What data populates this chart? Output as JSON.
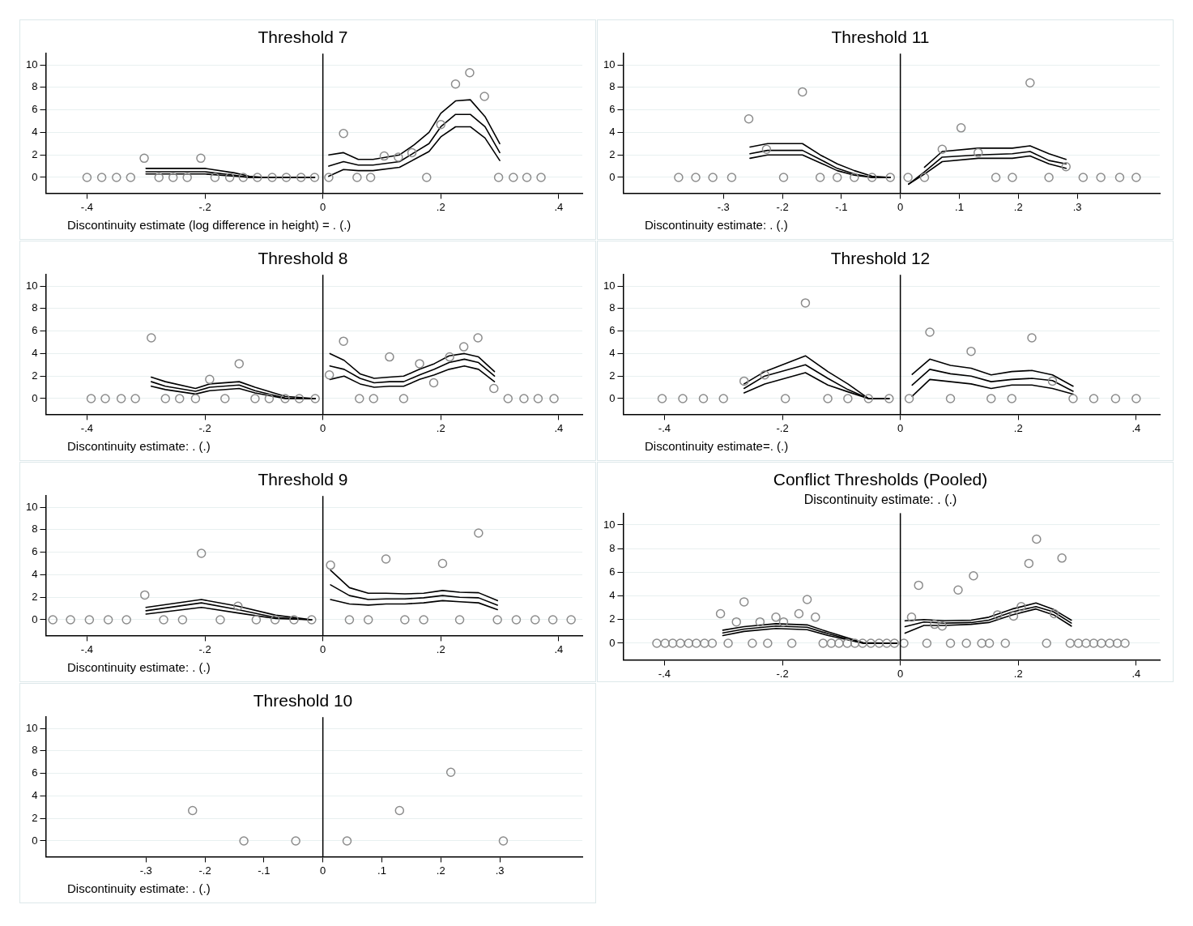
{
  "chart_data": [
    {
      "type": "scatter",
      "title": "Threshold 7",
      "annotations": [
        "Discontinuity estimate (log difference in height) = . (.)"
      ],
      "xlim": [
        -0.47,
        0.44
      ],
      "ylim": [
        -1.4,
        11
      ],
      "xticks": [
        {
          "value": -0.4,
          "label": "-.4"
        },
        {
          "value": -0.2,
          "label": "-.2"
        },
        {
          "value": 0,
          "label": "0"
        },
        {
          "value": 0.2,
          "label": ".2"
        },
        {
          "value": 0.4,
          "label": ".4"
        }
      ],
      "yticks": [
        0,
        2,
        4,
        6,
        8,
        10
      ],
      "grid": "y",
      "marker": "circle",
      "ref_lines": [
        {
          "axis": "x",
          "value": 0,
          "color": "#000000"
        }
      ],
      "series": [
        {
          "color": "#8c8c8c",
          "x": [
            -0.4,
            -0.375,
            -0.35,
            -0.326,
            -0.303,
            -0.278,
            -0.254,
            -0.23,
            -0.207,
            -0.183,
            -0.158,
            -0.135,
            -0.111,
            -0.086,
            -0.062,
            -0.037,
            -0.014,
            0.01,
            0.035,
            0.058,
            0.081,
            0.104,
            0.128,
            0.151,
            0.176,
            0.2,
            0.225,
            0.249,
            0.274,
            0.298,
            0.323,
            0.346,
            0.37
          ],
          "values": [
            0,
            0,
            0,
            0,
            1.7,
            0,
            0,
            0,
            1.7,
            0,
            0,
            0,
            0,
            0,
            0,
            0,
            0,
            0,
            3.9,
            0,
            0,
            1.9,
            1.8,
            2.2,
            0,
            4.7,
            8.3,
            9.3,
            7.2,
            0,
            0,
            0,
            0
          ]
        },
        {
          "type": "line",
          "marker": "none",
          "color": "#000000",
          "x": [
            -0.3,
            -0.25,
            -0.2,
            -0.15,
            -0.125,
            -0.1,
            -0.05,
            -0.014
          ],
          "values": [
            0.5,
            0.5,
            0.5,
            0.2,
            0,
            0,
            0,
            0
          ]
        },
        {
          "type": "line",
          "marker": "none",
          "color": "#000000",
          "x": [
            -0.3,
            -0.25,
            -0.2,
            -0.15,
            -0.125,
            -0.1,
            -0.05,
            -0.014
          ],
          "values": [
            0.3,
            0.3,
            0.3,
            0.1,
            0,
            0,
            0,
            0
          ]
        },
        {
          "type": "line",
          "marker": "none",
          "color": "#000000",
          "x": [
            -0.3,
            -0.25,
            -0.2,
            -0.15,
            -0.125,
            -0.1,
            -0.05,
            -0.014
          ],
          "values": [
            0.8,
            0.8,
            0.8,
            0.4,
            0.1,
            0,
            0,
            0
          ]
        },
        {
          "type": "line",
          "marker": "none",
          "color": "#000000",
          "x": [
            0.01,
            0.035,
            0.06,
            0.085,
            0.13,
            0.155,
            0.18,
            0.2,
            0.225,
            0.25,
            0.275,
            0.3
          ],
          "values": [
            1,
            1.4,
            1.1,
            1.1,
            1.4,
            2.2,
            3,
            4.5,
            5.6,
            5.6,
            4.5,
            2.2
          ]
        },
        {
          "type": "line",
          "marker": "none",
          "color": "#000000",
          "x": [
            0.01,
            0.035,
            0.06,
            0.085,
            0.13,
            0.155,
            0.18,
            0.2,
            0.225,
            0.25,
            0.275,
            0.3
          ],
          "values": [
            0.1,
            0.7,
            0.6,
            0.6,
            0.9,
            1.6,
            2.3,
            3.6,
            4.5,
            4.5,
            3.5,
            1.5
          ]
        },
        {
          "type": "line",
          "marker": "none",
          "color": "#000000",
          "x": [
            0.01,
            0.035,
            0.06,
            0.085,
            0.13,
            0.155,
            0.18,
            0.2,
            0.225,
            0.25,
            0.275,
            0.3
          ],
          "values": [
            2,
            2.2,
            1.6,
            1.6,
            2,
            2.9,
            4,
            5.7,
            6.8,
            6.9,
            5.4,
            3
          ]
        }
      ]
    },
    {
      "type": "scatter",
      "title": "Threshold 11",
      "annotations": [
        "Discontinuity estimate: . (.)"
      ],
      "xlim": [
        -0.47,
        0.44
      ],
      "ylim": [
        -1.4,
        11
      ],
      "xticks": [
        {
          "value": -0.3,
          "label": "-.3"
        },
        {
          "value": -0.2,
          "label": "-.2"
        },
        {
          "value": -0.1,
          "label": "-.1"
        },
        {
          "value": 0,
          "label": "0"
        },
        {
          "value": 0.1,
          "label": ".1"
        },
        {
          "value": 0.2,
          "label": ".2"
        },
        {
          "value": 0.3,
          "label": ".3"
        }
      ],
      "yticks": [
        0,
        2,
        4,
        6,
        8,
        10
      ],
      "grid": "y",
      "marker": "circle",
      "ref_lines": [
        {
          "axis": "x",
          "value": 0,
          "color": "#000000"
        }
      ],
      "series": [
        {
          "color": "#8c8c8c",
          "x": [
            -0.376,
            -0.347,
            -0.318,
            -0.286,
            -0.257,
            -0.227,
            -0.198,
            -0.166,
            -0.136,
            -0.107,
            -0.078,
            -0.048,
            -0.017,
            0.013,
            0.041,
            0.071,
            0.103,
            0.132,
            0.162,
            0.19,
            0.22,
            0.252,
            0.281,
            0.31,
            0.34,
            0.372,
            0.4
          ],
          "values": [
            0,
            0,
            0,
            0,
            5.2,
            2.5,
            0,
            7.6,
            0,
            0,
            0,
            0,
            0,
            0,
            0,
            2.5,
            4.4,
            2.2,
            0,
            0,
            8.4,
            0,
            0.95,
            0,
            0,
            0,
            0
          ]
        },
        {
          "type": "line",
          "marker": "none",
          "color": "#000000",
          "x": [
            -0.255,
            -0.225,
            -0.166,
            -0.136,
            -0.107,
            -0.078,
            -0.048,
            -0.017
          ],
          "values": [
            2.1,
            2.4,
            2.4,
            1.6,
            0.8,
            0.3,
            0,
            0
          ]
        },
        {
          "type": "line",
          "marker": "none",
          "color": "#000000",
          "x": [
            -0.255,
            -0.225,
            -0.166,
            -0.136,
            -0.107,
            -0.078,
            -0.048,
            -0.017
          ],
          "values": [
            1.7,
            2,
            2,
            1.3,
            0.6,
            0.2,
            0,
            0
          ]
        },
        {
          "type": "line",
          "marker": "none",
          "color": "#000000",
          "x": [
            -0.255,
            -0.225,
            -0.166,
            -0.136,
            -0.107,
            -0.078,
            -0.048,
            -0.017
          ],
          "values": [
            2.7,
            3,
            3,
            2,
            1.2,
            0.6,
            0.1,
            0
          ]
        },
        {
          "type": "line",
          "marker": "none",
          "color": "#000000",
          "x": [
            0.014,
            0.041,
            0.071,
            0.132,
            0.19,
            0.22,
            0.252,
            0.281
          ],
          "values": [
            -0.6,
            0.5,
            1.8,
            2,
            2.1,
            2.3,
            1.5,
            1.2
          ]
        },
        {
          "type": "line",
          "marker": "none",
          "color": "#000000",
          "x": [
            0.014,
            0.041,
            0.071,
            0.132,
            0.19,
            0.22,
            0.252,
            0.281
          ],
          "values": [
            -0.6,
            0.3,
            1.4,
            1.7,
            1.7,
            1.9,
            1.2,
            0.8
          ]
        },
        {
          "type": "line",
          "marker": "none",
          "color": "#000000",
          "x": [
            0.041,
            0.071,
            0.132,
            0.19,
            0.22,
            0.252,
            0.281
          ],
          "values": [
            0.9,
            2.3,
            2.6,
            2.6,
            2.8,
            2.1,
            1.6
          ]
        }
      ]
    },
    {
      "type": "scatter",
      "title": "Threshold 8",
      "annotations": [
        "Discontinuity estimate: . (.)"
      ],
      "xlim": [
        -0.47,
        0.44
      ],
      "ylim": [
        -1.4,
        11
      ],
      "xticks": [
        {
          "value": -0.4,
          "label": "-.4"
        },
        {
          "value": -0.2,
          "label": "-.2"
        },
        {
          "value": 0,
          "label": "0"
        },
        {
          "value": 0.2,
          "label": ".2"
        },
        {
          "value": 0.4,
          "label": ".4"
        }
      ],
      "yticks": [
        0,
        2,
        4,
        6,
        8,
        10
      ],
      "grid": "y",
      "marker": "circle",
      "ref_lines": [
        {
          "axis": "x",
          "value": 0,
          "color": "#000000"
        }
      ],
      "series": [
        {
          "color": "#8c8c8c",
          "x": [
            -0.393,
            -0.369,
            -0.342,
            -0.318,
            -0.291,
            -0.267,
            -0.243,
            -0.216,
            -0.192,
            -0.166,
            -0.142,
            -0.115,
            -0.091,
            -0.064,
            -0.04,
            -0.013,
            0.011,
            0.035,
            0.062,
            0.086,
            0.113,
            0.137,
            0.164,
            0.188,
            0.215,
            0.239,
            0.263,
            0.29,
            0.314,
            0.341,
            0.365,
            0.392
          ],
          "values": [
            0,
            0,
            0,
            0,
            5.4,
            0,
            0,
            0,
            1.7,
            0,
            3.1,
            0,
            0,
            0,
            0,
            0,
            2.1,
            5.1,
            0,
            0,
            3.7,
            0,
            3.1,
            1.4,
            3.7,
            4.6,
            5.4,
            0.9,
            0,
            0,
            0,
            0
          ]
        },
        {
          "type": "line",
          "marker": "none",
          "color": "#000000",
          "x": [
            -0.291,
            -0.267,
            -0.216,
            -0.192,
            -0.142,
            -0.115,
            -0.064,
            -0.013
          ],
          "values": [
            1.5,
            1.1,
            0.65,
            1,
            1.2,
            0.7,
            0.05,
            0
          ]
        },
        {
          "type": "line",
          "marker": "none",
          "color": "#000000",
          "x": [
            -0.291,
            -0.267,
            -0.216,
            -0.192,
            -0.142,
            -0.115,
            -0.064,
            -0.013
          ],
          "values": [
            1.1,
            0.8,
            0.4,
            0.7,
            0.9,
            0.5,
            0,
            0
          ]
        },
        {
          "type": "line",
          "marker": "none",
          "color": "#000000",
          "x": [
            -0.291,
            -0.267,
            -0.216,
            -0.192,
            -0.142,
            -0.115,
            -0.064,
            -0.013
          ],
          "values": [
            1.9,
            1.5,
            0.9,
            1.3,
            1.5,
            1,
            0.2,
            0
          ]
        },
        {
          "type": "line",
          "marker": "none",
          "color": "#000000",
          "x": [
            0.012,
            0.036,
            0.063,
            0.087,
            0.113,
            0.137,
            0.164,
            0.189,
            0.214,
            0.24,
            0.264,
            0.291
          ],
          "values": [
            2.9,
            2.6,
            1.8,
            1.4,
            1.5,
            1.5,
            2.1,
            2.6,
            3.2,
            3.5,
            3.2,
            2
          ]
        },
        {
          "type": "line",
          "marker": "none",
          "color": "#000000",
          "x": [
            0.012,
            0.036,
            0.063,
            0.087,
            0.113,
            0.137,
            0.164,
            0.189,
            0.214,
            0.24,
            0.264,
            0.291
          ],
          "values": [
            1.7,
            2,
            1.3,
            1,
            1.1,
            1.1,
            1.7,
            2.1,
            2.6,
            2.9,
            2.6,
            1.5
          ]
        },
        {
          "type": "line",
          "marker": "none",
          "color": "#000000",
          "x": [
            0.012,
            0.036,
            0.063,
            0.087,
            0.113,
            0.137,
            0.164,
            0.189,
            0.214,
            0.24,
            0.264,
            0.291
          ],
          "values": [
            4,
            3.4,
            2.2,
            1.8,
            1.9,
            2,
            2.6,
            3.1,
            3.8,
            4,
            3.7,
            2.4
          ]
        }
      ]
    },
    {
      "type": "scatter",
      "title": "Threshold 12",
      "annotations": [
        "Discontinuity estimate=. (.)"
      ],
      "xlim": [
        -0.47,
        0.44
      ],
      "ylim": [
        -1.4,
        11
      ],
      "xticks": [
        {
          "value": -0.4,
          "label": "-.4"
        },
        {
          "value": -0.2,
          "label": "-.2"
        },
        {
          "value": 0,
          "label": "0"
        },
        {
          "value": 0.2,
          "label": ".2"
        },
        {
          "value": 0.4,
          "label": ".4"
        }
      ],
      "yticks": [
        0,
        2,
        4,
        6,
        8,
        10
      ],
      "grid": "y",
      "marker": "circle",
      "ref_lines": [
        {
          "axis": "x",
          "value": 0,
          "color": "#000000"
        }
      ],
      "series": [
        {
          "color": "#8c8c8c",
          "x": [
            -0.404,
            -0.369,
            -0.334,
            -0.3,
            -0.265,
            -0.23,
            -0.195,
            -0.161,
            -0.123,
            -0.089,
            -0.054,
            -0.019,
            0.015,
            0.05,
            0.085,
            0.12,
            0.154,
            0.189,
            0.223,
            0.258,
            0.293,
            0.328,
            0.365,
            0.4
          ],
          "values": [
            0,
            0,
            0,
            0,
            1.55,
            2.1,
            0,
            8.5,
            0,
            0,
            0,
            0,
            0,
            5.9,
            0,
            4.2,
            0,
            0,
            5.4,
            1.55,
            0,
            0,
            0,
            0
          ]
        },
        {
          "type": "line",
          "marker": "none",
          "color": "#000000",
          "x": [
            -0.265,
            -0.23,
            -0.161,
            -0.123,
            -0.089,
            -0.054,
            -0.019
          ],
          "values": [
            0.9,
            2,
            3,
            1.8,
            0.8,
            0,
            0
          ]
        },
        {
          "type": "line",
          "marker": "none",
          "color": "#000000",
          "x": [
            -0.265,
            -0.23,
            -0.161,
            -0.123,
            -0.089,
            -0.054,
            -0.019
          ],
          "values": [
            0.5,
            1.3,
            2.3,
            1.2,
            0.6,
            0,
            0
          ]
        },
        {
          "type": "line",
          "marker": "none",
          "color": "#000000",
          "x": [
            -0.265,
            -0.23,
            -0.161,
            -0.123,
            -0.089,
            -0.054,
            -0.019
          ],
          "values": [
            1.3,
            2.4,
            3.8,
            2.4,
            1.3,
            0,
            0
          ]
        },
        {
          "type": "line",
          "marker": "none",
          "color": "#000000",
          "x": [
            0.02,
            0.05,
            0.085,
            0.12,
            0.154,
            0.189,
            0.223,
            0.258,
            0.293
          ],
          "values": [
            1.2,
            2.6,
            2.2,
            2,
            1.5,
            1.7,
            1.8,
            1.6,
            0.65
          ]
        },
        {
          "type": "line",
          "marker": "none",
          "color": "#000000",
          "x": [
            0.02,
            0.05,
            0.085,
            0.12,
            0.154,
            0.189,
            0.223,
            0.258,
            0.293
          ],
          "values": [
            0.2,
            1.7,
            1.5,
            1.3,
            0.9,
            1.2,
            1.2,
            0.9,
            0.4
          ]
        },
        {
          "type": "line",
          "marker": "none",
          "color": "#000000",
          "x": [
            0.02,
            0.05,
            0.085,
            0.12,
            0.154,
            0.189,
            0.223,
            0.258,
            0.293
          ],
          "values": [
            2.15,
            3.5,
            2.95,
            2.7,
            2.1,
            2.4,
            2.5,
            2.1,
            1.1
          ]
        }
      ]
    },
    {
      "type": "scatter",
      "title": "Threshold 9",
      "annotations": [
        "Discontinuity estimate: . (.)"
      ],
      "xlim": [
        -0.47,
        0.44
      ],
      "ylim": [
        -1.4,
        11
      ],
      "xticks": [
        {
          "value": -0.4,
          "label": "-.4"
        },
        {
          "value": -0.2,
          "label": "-.2"
        },
        {
          "value": 0,
          "label": "0"
        },
        {
          "value": 0.2,
          "label": ".2"
        },
        {
          "value": 0.4,
          "label": ".4"
        }
      ],
      "yticks": [
        0,
        2,
        4,
        6,
        8,
        10
      ],
      "grid": "y",
      "marker": "circle",
      "ref_lines": [
        {
          "axis": "x",
          "value": 0,
          "color": "#000000"
        }
      ],
      "series": [
        {
          "color": "#8c8c8c",
          "x": [
            -0.458,
            -0.428,
            -0.396,
            -0.364,
            -0.333,
            -0.302,
            -0.27,
            -0.238,
            -0.206,
            -0.174,
            -0.144,
            -0.113,
            -0.081,
            -0.049,
            -0.019,
            0.013,
            0.045,
            0.077,
            0.107,
            0.139,
            0.171,
            0.203,
            0.232,
            0.264,
            0.296,
            0.328,
            0.36,
            0.39,
            0.421
          ],
          "values": [
            0,
            0,
            0,
            0,
            0,
            2.2,
            0,
            0,
            5.9,
            0,
            1.2,
            0,
            0,
            0,
            0,
            4.85,
            0,
            0,
            5.4,
            0,
            0,
            5,
            0,
            7.7,
            0,
            0,
            0,
            0,
            0
          ]
        },
        {
          "type": "line",
          "marker": "none",
          "color": "#000000",
          "x": [
            -0.3,
            -0.206,
            -0.144,
            -0.08,
            -0.019
          ],
          "values": [
            0.8,
            1.5,
            0.9,
            0.2,
            0
          ]
        },
        {
          "type": "line",
          "marker": "none",
          "color": "#000000",
          "x": [
            -0.3,
            -0.206,
            -0.144,
            -0.08,
            -0.019
          ],
          "values": [
            0.5,
            1.1,
            0.6,
            0.1,
            0
          ]
        },
        {
          "type": "line",
          "marker": "none",
          "color": "#000000",
          "x": [
            -0.3,
            -0.206,
            -0.144,
            -0.08,
            -0.019
          ],
          "values": [
            1.1,
            1.8,
            1.2,
            0.4,
            0
          ]
        },
        {
          "type": "line",
          "marker": "none",
          "color": "#000000",
          "x": [
            0.013,
            0.045,
            0.077,
            0.107,
            0.139,
            0.171,
            0.203,
            0.232,
            0.264,
            0.296
          ],
          "values": [
            3.1,
            2.15,
            1.8,
            1.85,
            1.85,
            1.95,
            2.15,
            2,
            1.95,
            1.3
          ]
        },
        {
          "type": "line",
          "marker": "none",
          "color": "#000000",
          "x": [
            0.013,
            0.045,
            0.077,
            0.107,
            0.139,
            0.171,
            0.203,
            0.232,
            0.264,
            0.296
          ],
          "values": [
            1.8,
            1.4,
            1.3,
            1.4,
            1.4,
            1.5,
            1.7,
            1.6,
            1.5,
            0.9
          ]
        },
        {
          "type": "line",
          "marker": "none",
          "color": "#000000",
          "x": [
            0.013,
            0.045,
            0.077,
            0.107,
            0.139,
            0.171,
            0.203,
            0.232,
            0.264,
            0.296
          ],
          "values": [
            4.4,
            2.85,
            2.35,
            2.35,
            2.3,
            2.35,
            2.6,
            2.45,
            2.4,
            1.7
          ]
        }
      ]
    },
    {
      "type": "scatter",
      "title": "Conflict Thresholds (Pooled)",
      "subtitle": "Discontinuity estimate: . (.)",
      "xlim": [
        -0.47,
        0.44
      ],
      "ylim": [
        -1.4,
        11
      ],
      "xticks": [
        {
          "value": -0.4,
          "label": "-.4"
        },
        {
          "value": -0.2,
          "label": "-.2"
        },
        {
          "value": 0,
          "label": "0"
        },
        {
          "value": 0.2,
          "label": ".2"
        },
        {
          "value": 0.4,
          "label": ".4"
        }
      ],
      "yticks": [
        0,
        2,
        4,
        6,
        8,
        10
      ],
      "grid": "y",
      "marker": "circle",
      "ref_lines": [
        {
          "axis": "x",
          "value": 0,
          "color": "#000000"
        }
      ],
      "series": [
        {
          "color": "#8c8c8c",
          "x": [
            -0.413,
            -0.399,
            -0.386,
            -0.373,
            -0.359,
            -0.346,
            -0.332,
            -0.319,
            -0.305,
            -0.292,
            -0.278,
            -0.265,
            -0.251,
            -0.238,
            -0.225,
            -0.211,
            -0.198,
            -0.184,
            -0.172,
            -0.158,
            -0.144,
            -0.131,
            -0.117,
            -0.104,
            -0.09,
            -0.077,
            -0.064,
            -0.05,
            -0.036,
            -0.023,
            -0.01,
            0.006,
            0.019,
            0.031,
            0.045,
            0.058,
            0.071,
            0.085,
            0.098,
            0.112,
            0.124,
            0.138,
            0.151,
            0.165,
            0.178,
            0.192,
            0.205,
            0.218,
            0.231,
            0.248,
            0.261,
            0.274,
            0.288,
            0.302,
            0.315,
            0.328,
            0.341,
            0.355,
            0.368,
            0.381
          ],
          "values": [
            0,
            0,
            0,
            0,
            0,
            0,
            0,
            0,
            2.5,
            0,
            1.8,
            3.5,
            0,
            1.8,
            0,
            2.2,
            1.8,
            0,
            2.5,
            3.7,
            2.2,
            0,
            0,
            0,
            0,
            0,
            0,
            0,
            0,
            0,
            0,
            0,
            2.2,
            4.9,
            0,
            1.6,
            1.45,
            0,
            4.5,
            0,
            5.7,
            0,
            0,
            2.4,
            0,
            2.3,
            3.1,
            6.75,
            8.8,
            0,
            2.5,
            7.2,
            0,
            0,
            0,
            0,
            0,
            0,
            0,
            0
          ]
        },
        {
          "type": "line",
          "marker": "none",
          "color": "#000000",
          "x": [
            -0.301,
            -0.265,
            -0.211,
            -0.158,
            -0.122,
            -0.063,
            -0.006
          ],
          "values": [
            0.87,
            1.2,
            1.45,
            1.35,
            0.8,
            0,
            0
          ]
        },
        {
          "type": "line",
          "marker": "none",
          "color": "#000000",
          "x": [
            -0.301,
            -0.265,
            -0.211,
            -0.158,
            -0.122,
            -0.063,
            -0.006
          ],
          "values": [
            0.65,
            1,
            1.25,
            1.15,
            0.65,
            0,
            0
          ]
        },
        {
          "type": "line",
          "marker": "none",
          "color": "#000000",
          "x": [
            -0.301,
            -0.265,
            -0.211,
            -0.158,
            -0.122,
            -0.063,
            -0.006
          ],
          "values": [
            1.1,
            1.4,
            1.65,
            1.55,
            0.95,
            0.05,
            0
          ]
        },
        {
          "type": "line",
          "marker": "none",
          "color": "#000000",
          "x": [
            0.008,
            0.04,
            0.075,
            0.12,
            0.15,
            0.19,
            0.23,
            0.26,
            0.29
          ],
          "values": [
            1.4,
            1.8,
            1.7,
            1.75,
            1.95,
            2.65,
            3.1,
            2.65,
            1.7
          ]
        },
        {
          "type": "line",
          "marker": "none",
          "color": "#000000",
          "x": [
            0.008,
            0.04,
            0.075,
            0.12,
            0.15,
            0.19,
            0.23,
            0.26,
            0.29
          ],
          "values": [
            0.85,
            1.5,
            1.5,
            1.6,
            1.75,
            2.4,
            2.9,
            2.4,
            1.45
          ]
        },
        {
          "type": "line",
          "marker": "none",
          "color": "#000000",
          "x": [
            0.008,
            0.04,
            0.075,
            0.12,
            0.15,
            0.19,
            0.23,
            0.26,
            0.29
          ],
          "values": [
            1.9,
            2,
            1.9,
            1.95,
            2.2,
            2.9,
            3.4,
            2.85,
            1.95
          ]
        }
      ]
    },
    {
      "type": "scatter",
      "title": "Threshold 10",
      "annotations": [
        "Discontinuity estimate: . (.)"
      ],
      "xlim": [
        -0.47,
        0.44
      ],
      "ylim": [
        -1.4,
        11
      ],
      "xticks": [
        {
          "value": -0.3,
          "label": "-.3"
        },
        {
          "value": -0.2,
          "label": "-.2"
        },
        {
          "value": -0.1,
          "label": "-.1"
        },
        {
          "value": 0,
          "label": "0"
        },
        {
          "value": 0.1,
          "label": ".1"
        },
        {
          "value": 0.2,
          "label": ".2"
        },
        {
          "value": 0.3,
          "label": ".3"
        }
      ],
      "yticks": [
        0,
        2,
        4,
        6,
        8,
        10
      ],
      "grid": "y",
      "marker": "circle",
      "ref_lines": [
        {
          "axis": "x",
          "value": 0,
          "color": "#000000"
        }
      ],
      "series": [
        {
          "color": "#8c8c8c",
          "x": [
            -0.221,
            -0.134,
            -0.046,
            0.041,
            0.13,
            0.217,
            0.306
          ],
          "values": [
            2.7,
            0,
            0,
            0,
            2.7,
            6.1,
            0
          ]
        }
      ]
    }
  ]
}
